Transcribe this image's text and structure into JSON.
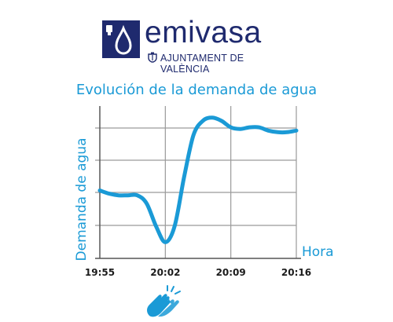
{
  "logo": {
    "name": "emivasa",
    "subtitle": "AJUNTAMENT DE VALÈNCIA"
  },
  "colors": {
    "accent": "#1a9ad6",
    "brand": "#1f2a6e",
    "grid": "#9a9a9a"
  },
  "icons": {
    "logo": "water-drop-icon",
    "crest": "city-crest-icon",
    "applause": "clapping-hands-icon"
  },
  "chart_data": {
    "type": "line",
    "title": "Evolución de la demanda de agua",
    "xlabel": "Hora",
    "ylabel": "Demanda de agua",
    "x_ticks": [
      "19:55",
      "20:02",
      "20:09",
      "20:16"
    ],
    "grid": true,
    "series": [
      {
        "x": [
          "19:55",
          "19:56",
          "19:57",
          "19:58",
          "19:59",
          "20:00",
          "20:01",
          "20:02",
          "20:03",
          "20:04",
          "20:05",
          "20:06",
          "20:07",
          "20:08",
          "20:09",
          "20:10",
          "20:11",
          "20:12",
          "20:13",
          "20:14",
          "20:15",
          "20:16"
        ],
        "values": [
          0.42,
          0.4,
          0.39,
          0.39,
          0.39,
          0.34,
          0.2,
          0.1,
          0.2,
          0.5,
          0.76,
          0.85,
          0.87,
          0.85,
          0.81,
          0.8,
          0.81,
          0.81,
          0.79,
          0.78,
          0.78,
          0.79
        ]
      }
    ]
  }
}
